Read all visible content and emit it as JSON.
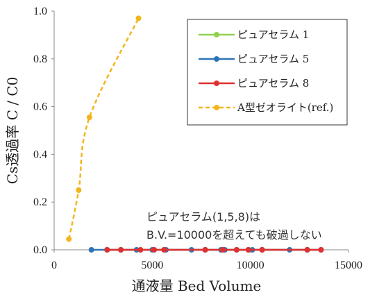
{
  "chart_data": {
    "type": "line",
    "xlabel": "通液量 Bed Volume",
    "ylabel": "Cs透過率 C / C0",
    "xlim": [
      0,
      15000
    ],
    "ylim": [
      0,
      1.0
    ],
    "x_ticks": [
      "0",
      "5000",
      "10000",
      "15000"
    ],
    "y_ticks": [
      "0.0",
      "0.2",
      "0.4",
      "0.6",
      "0.8",
      "1.0"
    ],
    "grid": false,
    "legend_position": "top-right",
    "annotation": [
      "ピュアセラム(1,5,8)は",
      "B.V.=10000を超えても破過しない"
    ],
    "series": [
      {
        "name": "ピュアセラム 1",
        "color": "#92d050",
        "dashed": false,
        "x": [
          2700,
          3400,
          4400,
          5600,
          7700,
          8600,
          9900,
          10600,
          12900
        ],
        "y": [
          0,
          0,
          0,
          0,
          0,
          0,
          0,
          0,
          0
        ]
      },
      {
        "name": "ピュアセラム 5",
        "color": "#2e75b6",
        "dashed": false,
        "x": [
          1900,
          2700,
          3400,
          4200,
          5000,
          5700,
          7000,
          7700,
          8500,
          8700,
          9300,
          9900,
          10100,
          10600,
          12000,
          12900,
          13600
        ],
        "y": [
          0,
          0,
          0,
          0,
          0,
          0,
          0,
          0,
          0,
          0,
          0,
          0,
          0,
          0,
          0,
          0,
          0
        ]
      },
      {
        "name": "ピュアセラム 8",
        "color": "#e03030",
        "dashed": false,
        "x": [
          2700,
          3400,
          4400,
          5100,
          5600,
          7700,
          8600,
          9300,
          9900,
          10600,
          12900,
          13600
        ],
        "y": [
          0,
          0,
          0,
          0,
          0,
          0,
          0,
          0,
          0,
          0,
          0,
          0
        ]
      },
      {
        "name": "A型ゼオライト(ref.)",
        "color": "#f2b51c",
        "dashed": true,
        "x": [
          750,
          1250,
          1800,
          4300
        ],
        "y": [
          0.045,
          0.25,
          0.555,
          0.97
        ]
      }
    ]
  }
}
